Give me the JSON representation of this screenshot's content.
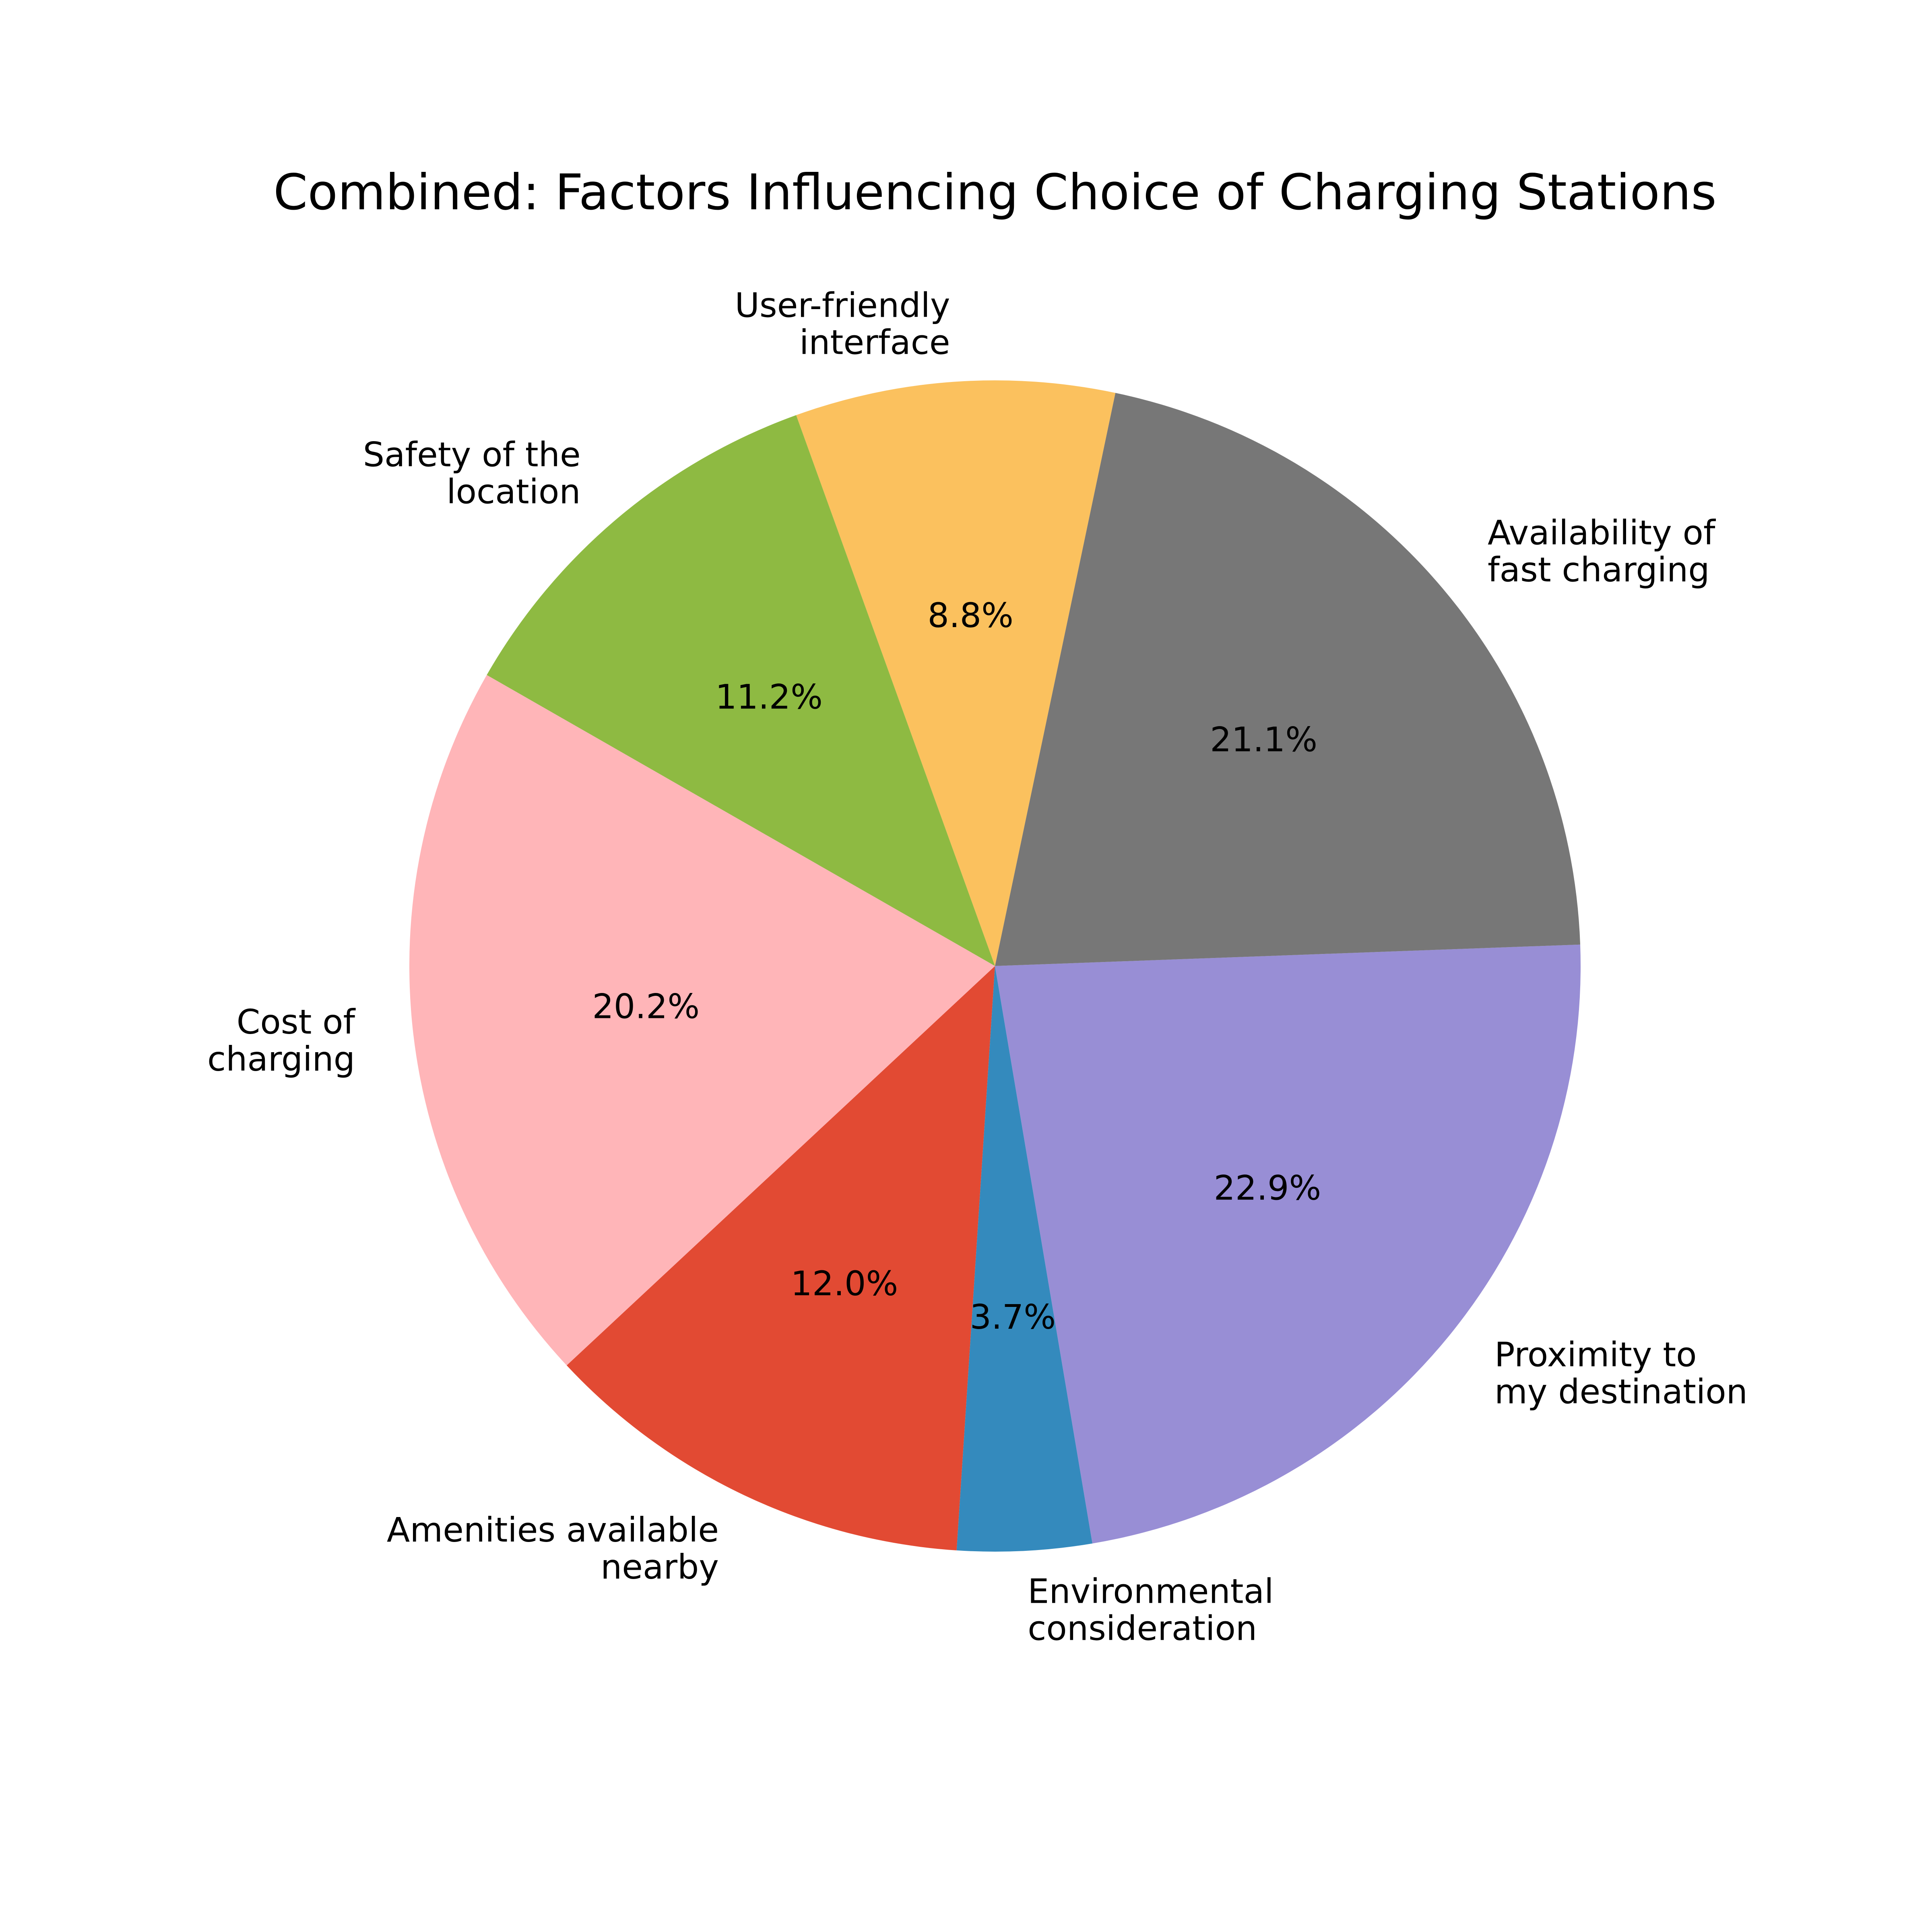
{
  "chart_data": {
    "type": "pie",
    "title": "Combined: Factors Influencing Choice of Charging Stations",
    "start_angle_deg": 223,
    "direction": "counterclockwise",
    "slices": [
      {
        "label": "Amenities available nearby",
        "label_lines": [
          "Amenities available",
          "nearby"
        ],
        "value": 12.0,
        "pct_label": "12.0%",
        "color": "#E24A33"
      },
      {
        "label": "Environmental consideration",
        "label_lines": [
          "Environmental",
          "consideration"
        ],
        "value": 3.7,
        "pct_label": "3.7%",
        "color": "#348ABD"
      },
      {
        "label": "Proximity to my destination",
        "label_lines": [
          "Proximity to",
          "my destination"
        ],
        "value": 22.9,
        "pct_label": "22.9%",
        "color": "#988ED5"
      },
      {
        "label": "Availability of fast charging",
        "label_lines": [
          "Availability of",
          "fast charging"
        ],
        "value": 21.1,
        "pct_label": "21.1%",
        "color": "#777777"
      },
      {
        "label": "User-friendly interface",
        "label_lines": [
          "User-friendly",
          "interface"
        ],
        "value": 8.8,
        "pct_label": "8.8%",
        "color": "#FBC15E"
      },
      {
        "label": "Safety of the location",
        "label_lines": [
          "Safety of the",
          "location"
        ],
        "value": 11.2,
        "pct_label": "11.2%",
        "color": "#8EBA42"
      },
      {
        "label": "Cost of charging",
        "label_lines": [
          "Cost of",
          "charging"
        ],
        "value": 20.2,
        "pct_label": "20.2%",
        "color": "#FFB5B8"
      }
    ]
  }
}
